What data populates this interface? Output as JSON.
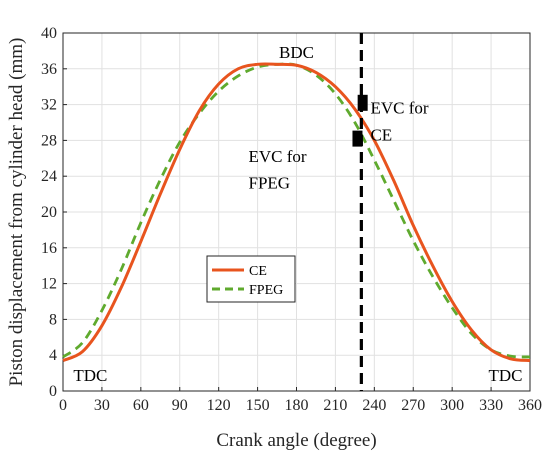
{
  "chart_data": {
    "type": "line",
    "xlabel": "Crank angle (degree)",
    "ylabel": "Piston displacement from cylinder head (mm)",
    "xlim": [
      0,
      360
    ],
    "ylim": [
      0,
      40
    ],
    "xticks": [
      0,
      30,
      60,
      90,
      120,
      150,
      180,
      210,
      240,
      270,
      300,
      330,
      360
    ],
    "yticks": [
      0,
      4,
      8,
      12,
      16,
      20,
      24,
      28,
      32,
      36,
      40
    ],
    "grid": true,
    "legend_position": "center-left",
    "series": [
      {
        "name": "CE",
        "color": "#e8541e",
        "style": "solid",
        "x": [
          0,
          15,
          30,
          45,
          60,
          75,
          90,
          105,
          120,
          135,
          150,
          165,
          180,
          195,
          210,
          225,
          240,
          255,
          270,
          285,
          300,
          315,
          330,
          345,
          360
        ],
        "y": [
          3.4,
          4.4,
          7.3,
          11.6,
          16.7,
          22.0,
          27.0,
          31.3,
          34.3,
          36.0,
          36.5,
          36.5,
          36.4,
          35.6,
          34.0,
          31.5,
          28.0,
          23.5,
          18.5,
          14.0,
          10.0,
          6.8,
          4.6,
          3.6,
          3.4
        ]
      },
      {
        "name": "FPEG",
        "color": "#5faa2e",
        "style": "dashed",
        "x": [
          0,
          15,
          30,
          45,
          60,
          75,
          90,
          105,
          120,
          135,
          150,
          165,
          180,
          195,
          210,
          225,
          240,
          255,
          270,
          285,
          300,
          315,
          330,
          345,
          360
        ],
        "y": [
          3.8,
          5.4,
          9.0,
          13.6,
          18.8,
          23.6,
          27.8,
          31.0,
          33.5,
          35.2,
          36.2,
          36.5,
          36.4,
          35.3,
          33.2,
          30.0,
          25.8,
          21.3,
          16.8,
          12.8,
          9.3,
          6.4,
          4.6,
          3.9,
          3.8
        ]
      }
    ],
    "reference_lines": [
      {
        "x": 230,
        "color": "#000000",
        "style": "dashed"
      }
    ],
    "markers": [
      {
        "x": 231,
        "y": 32.2,
        "shape": "square",
        "color": "#000000"
      },
      {
        "x": 227,
        "y": 28.2,
        "shape": "square",
        "color": "#000000"
      }
    ],
    "annotations": [
      {
        "id": "bdc",
        "text": "BDC",
        "x": 180,
        "y": 37.2
      },
      {
        "id": "evc_ce_1",
        "text": "EVC for",
        "x": 237,
        "y": 31.0
      },
      {
        "id": "evc_ce_2",
        "text": "CE",
        "x": 237,
        "y": 28.0
      },
      {
        "id": "evc_fpeg_1",
        "text": "EVC for",
        "x": 143,
        "y": 25.6
      },
      {
        "id": "evc_fpeg_2",
        "text": "FPEG",
        "x": 143,
        "y": 22.6
      },
      {
        "id": "tdc_left",
        "text": "TDC",
        "x": 8,
        "y": 1.1
      },
      {
        "id": "tdc_right",
        "text": "TDC",
        "x": 328,
        "y": 1.1
      }
    ]
  }
}
